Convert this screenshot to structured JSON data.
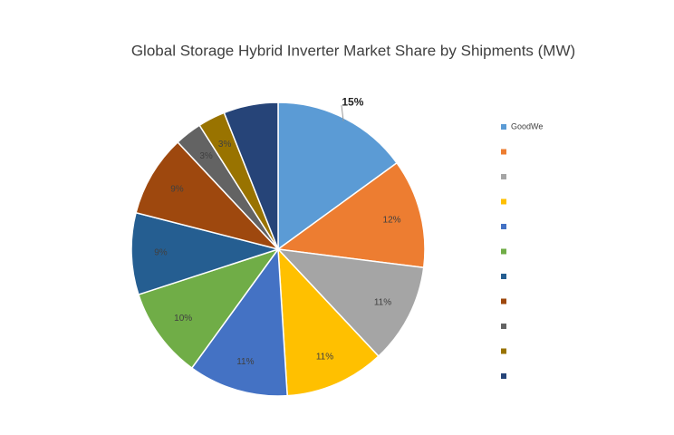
{
  "chart_data": {
    "type": "pie",
    "title": "Global Storage Hybrid Inverter Market Share by Shipments (MW)",
    "categories": [
      "GoodWe",
      null,
      null,
      null,
      null,
      null,
      null,
      null,
      null,
      null,
      null
    ],
    "values": [
      15,
      12,
      11,
      11,
      11,
      10,
      9,
      9,
      3,
      3,
      6
    ],
    "value_labels": [
      "15%",
      "12%",
      "11%",
      "11%",
      "11%",
      "10%",
      "9%",
      "9%",
      "3%",
      "3%",
      null
    ],
    "colors": [
      "#5b9bd5",
      "#ed7d31",
      "#a5a5a5",
      "#ffc000",
      "#4472c4",
      "#70ad47",
      "#255e91",
      "#9e480e",
      "#636363",
      "#997300",
      "#264478"
    ],
    "legend": "right"
  }
}
